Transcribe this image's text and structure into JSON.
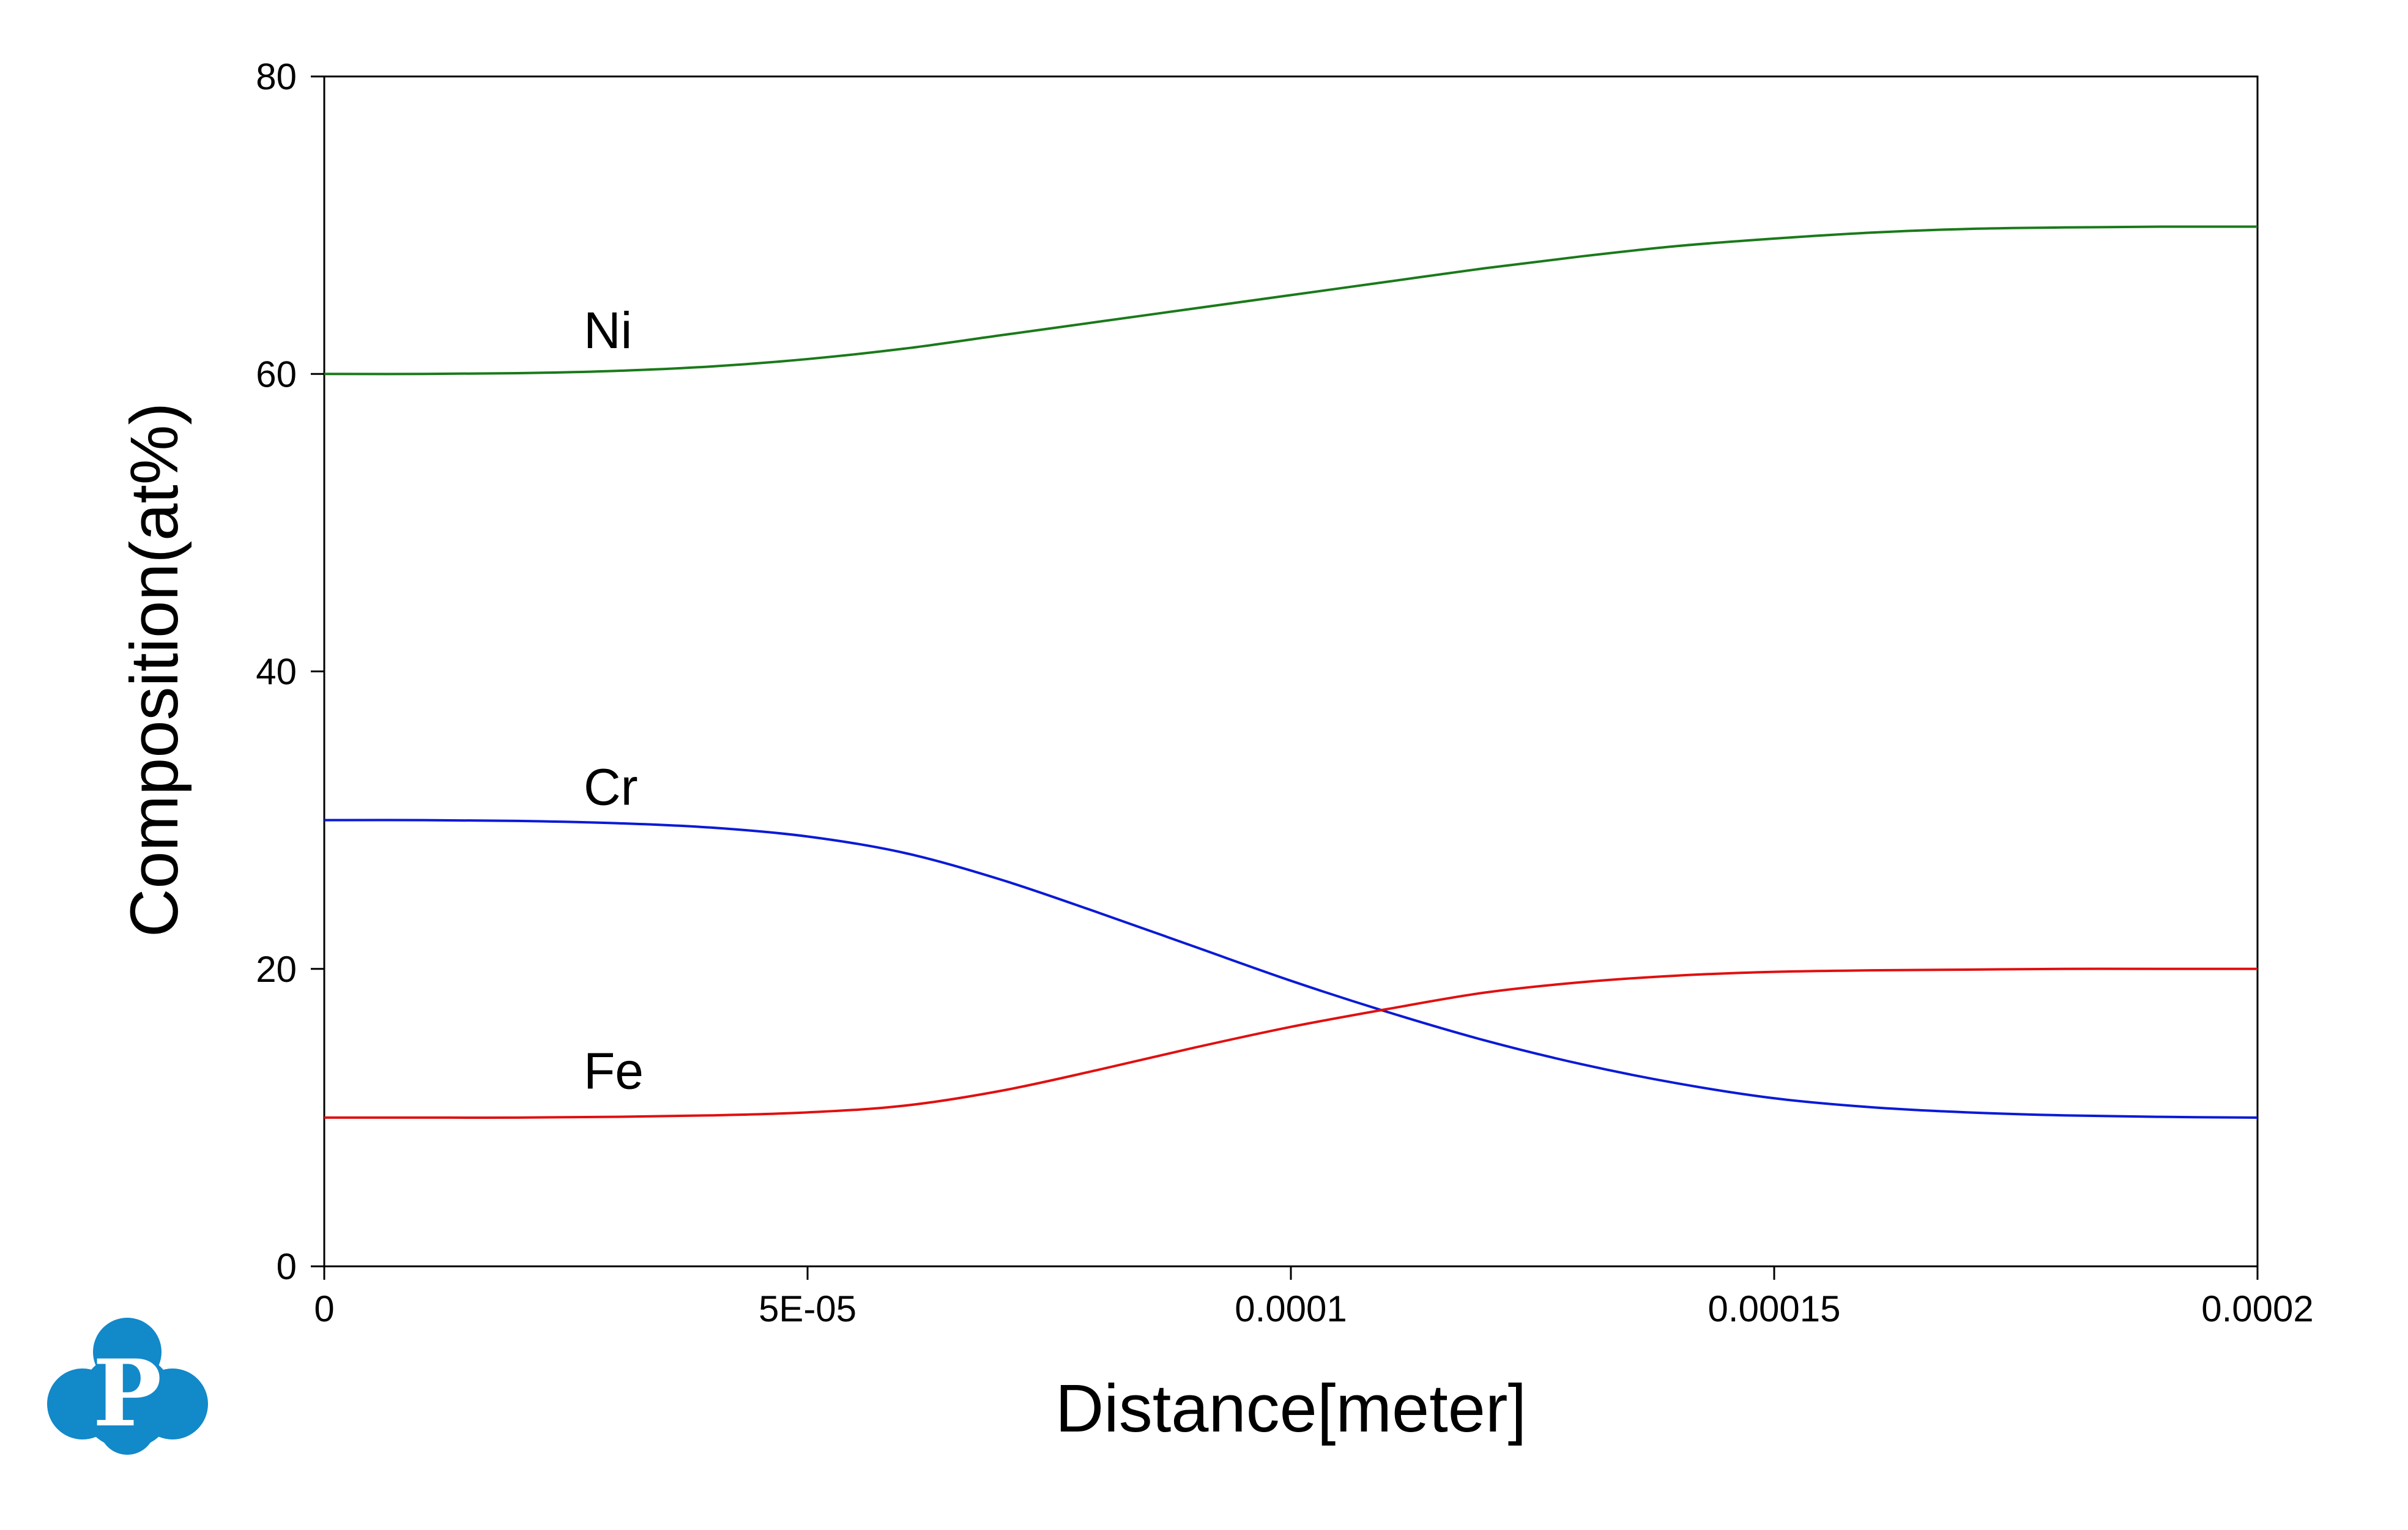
{
  "chart_data": {
    "type": "line",
    "title": "",
    "xlabel": "Distance[meter]",
    "ylabel": "Composition(at%)",
    "xlim": [
      0,
      0.0002
    ],
    "ylim": [
      0,
      80
    ],
    "x_ticks": [
      {
        "value": 0,
        "label": "0"
      },
      {
        "value": 5e-05,
        "label": "5E-05"
      },
      {
        "value": 0.0001,
        "label": "0.0001"
      },
      {
        "value": 0.00015,
        "label": "0.00015"
      },
      {
        "value": 0.0002,
        "label": "0.0002"
      }
    ],
    "y_ticks": [
      {
        "value": 0,
        "label": "0"
      },
      {
        "value": 20,
        "label": "20"
      },
      {
        "value": 40,
        "label": "40"
      },
      {
        "value": 60,
        "label": "60"
      },
      {
        "value": 80,
        "label": "80"
      }
    ],
    "grid": false,
    "legend": "none",
    "x": [
      0,
      1e-05,
      2e-05,
      3e-05,
      4e-05,
      5e-05,
      6e-05,
      7e-05,
      8e-05,
      9e-05,
      0.0001,
      0.00011,
      0.00012,
      0.00013,
      0.00014,
      0.00015,
      0.00016,
      0.00017,
      0.00018,
      0.00019,
      0.0002
    ],
    "series": [
      {
        "name": "Ni",
        "color": "#1a7a1a",
        "label_at": [
          3e-05,
          61
        ],
        "values": [
          60.0,
          60.0,
          60.05,
          60.2,
          60.5,
          61.0,
          61.7,
          62.6,
          63.5,
          64.4,
          65.3,
          66.2,
          67.1,
          67.9,
          68.6,
          69.1,
          69.5,
          69.75,
          69.85,
          69.9,
          69.9
        ]
      },
      {
        "name": "Cr",
        "color": "#0a1ad6",
        "label_at": [
          3e-05,
          30.3
        ],
        "values": [
          30.0,
          30.0,
          29.95,
          29.8,
          29.5,
          28.9,
          27.8,
          26.0,
          23.8,
          21.5,
          19.2,
          17.1,
          15.2,
          13.6,
          12.3,
          11.3,
          10.7,
          10.35,
          10.15,
          10.05,
          10.0
        ]
      },
      {
        "name": "Fe",
        "color": "#e01010",
        "label_at": [
          3e-05,
          11.2
        ],
        "values": [
          10.0,
          10.0,
          10.0,
          10.05,
          10.15,
          10.35,
          10.8,
          11.8,
          13.2,
          14.7,
          16.1,
          17.3,
          18.4,
          19.1,
          19.55,
          19.8,
          19.9,
          19.95,
          20.0,
          20.0,
          20.0
        ]
      }
    ]
  },
  "logo": {
    "icon": "p-cloud-logo",
    "letter": "P",
    "color": "#1289c9"
  }
}
